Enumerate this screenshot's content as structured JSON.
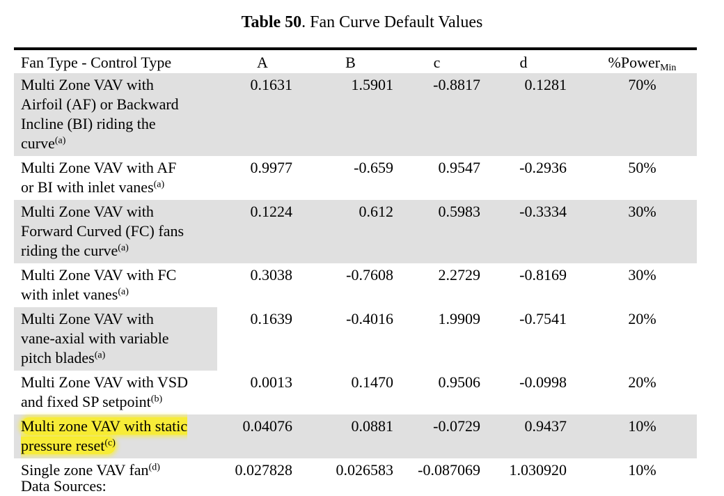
{
  "caption": {
    "label": "Table 50",
    "title": ". Fan Curve Default Values"
  },
  "headers": {
    "type": "Fan Type - Control Type",
    "A": "A",
    "B": "B",
    "c": "c",
    "d": "d",
    "power": "%Power",
    "power_sub": "Min"
  },
  "rows": [
    {
      "lines": [
        "Multi Zone VAV with",
        "Airfoil (AF) or Backward",
        "Incline (BI) riding the",
        "curve"
      ],
      "note": "(a)",
      "A": "0.1631",
      "B": "1.5901",
      "c": "-0.8817",
      "d": "0.1281",
      "power": "70%"
    },
    {
      "lines": [
        "Multi Zone VAV with AF",
        "or BI with inlet vanes"
      ],
      "note": "(a)",
      "A": "0.9977",
      "B": "-0.659",
      "c": "0.9547",
      "d": "-0.2936",
      "power": "50%"
    },
    {
      "lines": [
        "Multi Zone VAV with",
        "Forward Curved (FC) fans",
        "riding the curve"
      ],
      "note": "(a)",
      "A": "0.1224",
      "B": "0.612",
      "c": "0.5983",
      "d": "-0.3334",
      "power": "30%"
    },
    {
      "lines": [
        "Multi Zone VAV with FC",
        "with inlet vanes"
      ],
      "note": "(a)",
      "A": "0.3038",
      "B": "-0.7608",
      "c": "2.2729",
      "d": "-0.8169",
      "power": "30%"
    },
    {
      "lines": [
        "Multi Zone VAV with",
        "vane-axial with variable",
        "pitch blades"
      ],
      "note": "(a)",
      "A": "0.1639",
      "B": "-0.4016",
      "c": "1.9909",
      "d": "-0.7541",
      "power": "20%"
    },
    {
      "lines": [
        "Multi Zone VAV with VSD",
        "and fixed SP setpoint"
      ],
      "note": "(b)",
      "A": "0.0013",
      "B": "0.1470",
      "c": "0.9506",
      "d": "-0.0998",
      "power": "20%"
    },
    {
      "lines": [
        "Multi zone VAV with static",
        "pressure reset"
      ],
      "note": "(c)",
      "A": "0.04076",
      "B": "0.0881",
      "c": "-0.0729",
      "d": "0.9437",
      "power": "10%"
    },
    {
      "lines": [
        "Single zone VAV fan"
      ],
      "note": "(d)",
      "A": "0.027828",
      "B": "0.026583",
      "c": "-0.087069",
      "d": "1.030920",
      "power": "10%"
    }
  ],
  "footer": "Data Sources:",
  "colors": {
    "row_shade": "#e0e0e0",
    "highlight": "#fff000"
  }
}
